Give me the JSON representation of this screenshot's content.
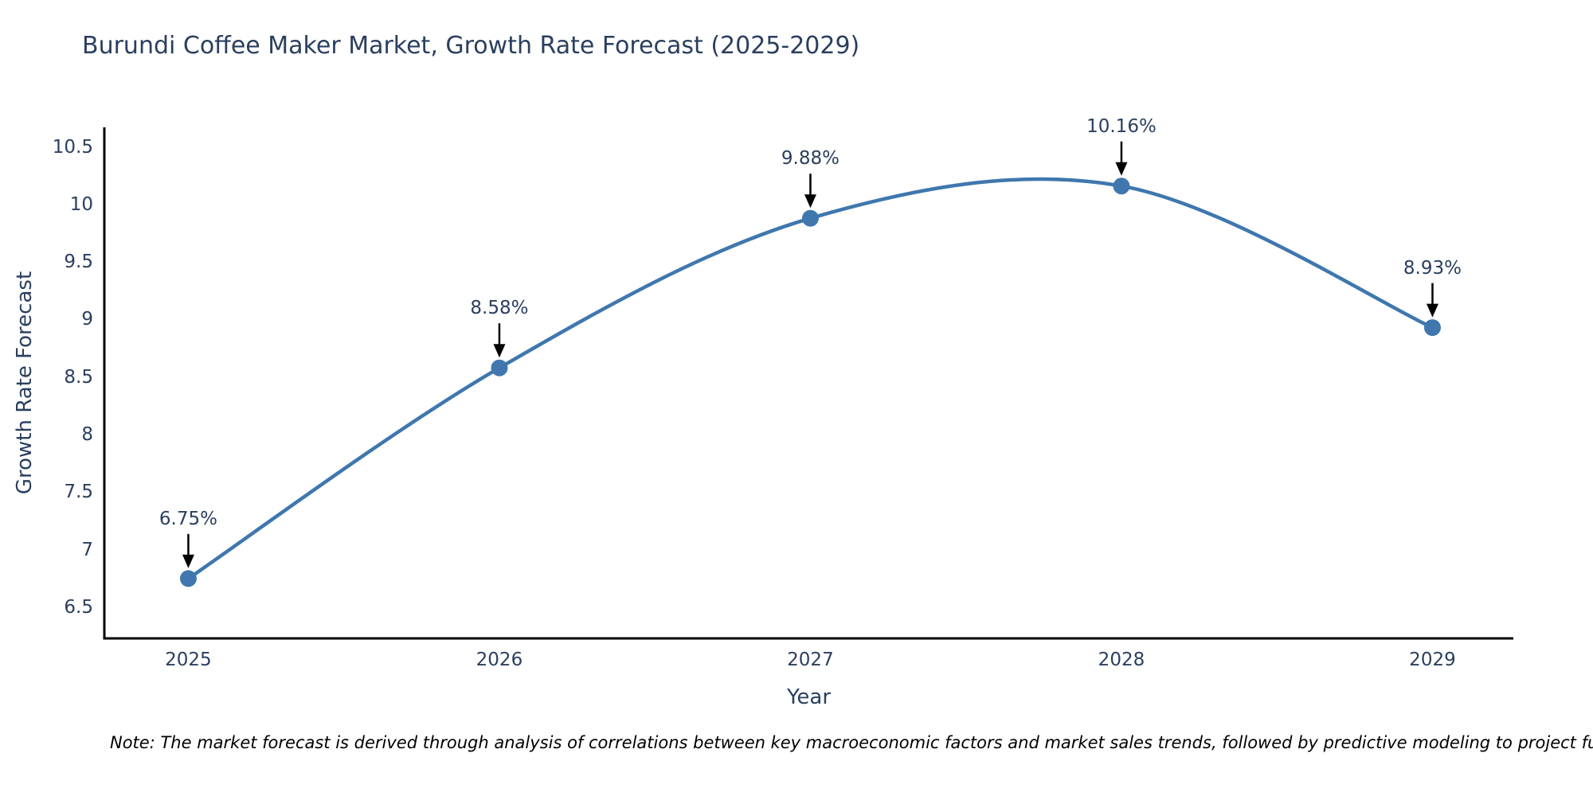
{
  "note": "Note: The market forecast is derived through analysis of correlations between key macroeconomic factors and market sales trends, followed by predictive modeling to project future sal",
  "chart_data": {
    "type": "line",
    "title": "Burundi Coffee Maker Market, Growth Rate Forecast (2025-2029)",
    "xlabel": "Year",
    "ylabel": "Growth Rate Forecast",
    "x": [
      2025,
      2026,
      2027,
      2028,
      2029
    ],
    "y": [
      6.75,
      8.58,
      9.88,
      10.16,
      8.93
    ],
    "point_labels": [
      "6.75%",
      "8.58%",
      "9.88%",
      "10.16%",
      "8.93%"
    ],
    "xtick_labels": [
      "2025",
      "2026",
      "2027",
      "2028",
      "2029"
    ],
    "ytick_values": [
      6.5,
      7,
      7.5,
      8,
      8.5,
      9,
      9.5,
      10,
      10.5
    ],
    "ytick_labels": [
      "6.5",
      "7",
      "7.5",
      "8",
      "8.5",
      "9",
      "9.5",
      "10",
      "10.5"
    ],
    "xlim": [
      2024.73,
      2029.26
    ],
    "ylim": [
      6.23,
      10.67
    ],
    "line_shape": "spline",
    "grid": false,
    "legend": "none",
    "colors": {
      "line": "#3f77ae",
      "marker": "#3f77ae",
      "axis_line": "#000000",
      "text": "#2a3f5f",
      "annotation_arrow": "#000000",
      "note_text": "#000000",
      "background": "#ffffff"
    }
  }
}
